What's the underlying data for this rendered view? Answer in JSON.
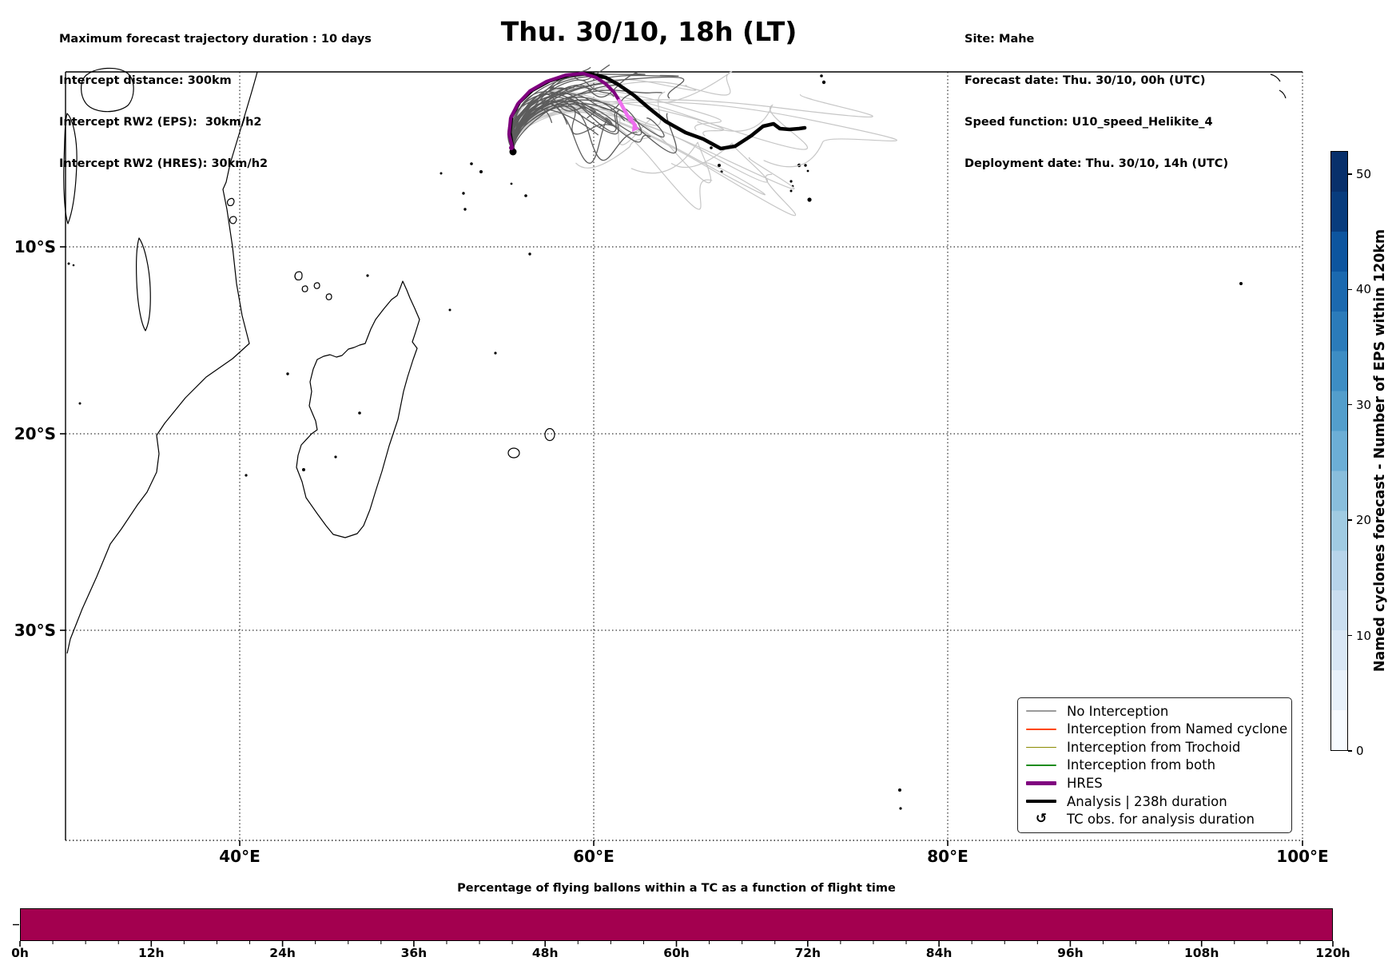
{
  "header": {
    "left": [
      "Maximum forecast trajectory duration : 10 days",
      "Intercept distance: 300km",
      "Intercept RW2 (EPS):  30km/h2",
      "Intercept RW2 (HRES): 30km/h2"
    ],
    "title": "Thu. 30/10, 18h (LT)",
    "right": [
      "Site: Mahe",
      "Forecast date: Thu. 30/10, 00h (UTC)",
      "Speed function: U10_speed_Helikite_4",
      "Deployment date: Thu. 30/10, 14h (UTC)"
    ]
  },
  "map": {
    "x_ticks": [
      "40°E",
      "60°E",
      "80°E",
      "100°E"
    ],
    "y_ticks": [
      "10°S",
      "20°S",
      "30°S"
    ],
    "legend": [
      {
        "label": "No Interception",
        "color": "#9a9a9a",
        "lw": 1.6
      },
      {
        "label": "Interception from Named cyclone",
        "color": "#ff4500",
        "lw": 1.6
      },
      {
        "label": "Interception from Trochoid",
        "color": "#8a8a00",
        "lw": 1.6
      },
      {
        "label": "Interception from both",
        "color": "#1e8c1e",
        "lw": 1.6
      },
      {
        "label": "HRES",
        "color": "#80007f",
        "lw": 4.5
      },
      {
        "label": "Analysis | 238h duration",
        "color": "#000000",
        "lw": 4.5
      },
      {
        "label": "TC obs. for analysis duration",
        "icon": "↺"
      }
    ],
    "tracks": {
      "analysis": {
        "name": "Analysis | 238h duration",
        "color": "#000000",
        "width": 4.6,
        "points": [
          [
            642,
            188
          ],
          [
            638,
            166
          ],
          [
            640,
            146
          ],
          [
            650,
            128
          ],
          [
            666,
            113
          ],
          [
            688,
            101
          ],
          [
            712,
            94
          ],
          [
            736,
            92
          ],
          [
            758,
            97
          ],
          [
            774,
            106
          ],
          [
            793,
            119
          ],
          [
            813,
            136
          ],
          [
            833,
            152
          ],
          [
            858,
            166
          ],
          [
            880,
            174
          ],
          [
            902,
            186
          ],
          [
            920,
            183
          ],
          [
            940,
            170
          ],
          [
            955,
            158
          ],
          [
            968,
            155
          ],
          [
            976,
            161
          ],
          [
            988,
            162
          ],
          [
            1000,
            161
          ],
          [
            1007,
            160
          ]
        ]
      },
      "hres": {
        "name": "HRES",
        "color": "#80007f",
        "width": 4.2,
        "points": [
          [
            642,
            188
          ],
          [
            637,
            168
          ],
          [
            639,
            148
          ],
          [
            648,
            130
          ],
          [
            663,
            114
          ],
          [
            684,
            102
          ],
          [
            708,
            94
          ],
          [
            730,
            92
          ],
          [
            746,
            97
          ],
          [
            758,
            105
          ],
          [
            768,
            115
          ],
          [
            775,
            126
          ]
        ]
      },
      "hres_tail": {
        "name": "HRES (forecast tail)",
        "color": "#ee6fee",
        "width": 4.6,
        "points": [
          [
            775,
            126
          ],
          [
            781,
            137
          ],
          [
            786,
            146
          ],
          [
            791,
            152
          ],
          [
            795,
            157
          ]
        ]
      },
      "ensemble": {
        "dark": {
          "count": 34,
          "color": "#5c5c5c",
          "width": 1.3
        },
        "light": {
          "count": 16,
          "color": "#c6c6c6",
          "width": 1.2
        },
        "seed": 20251030
      },
      "launch_site": "Mahe"
    }
  },
  "colorbar": {
    "title": "Named cyclones forecast - Number of EPS within 120km",
    "ticks": [
      0,
      10,
      20,
      30,
      40,
      50
    ],
    "vmin": 0,
    "vmax": 52,
    "steps": [
      "#f7fbff",
      "#e8f1fa",
      "#d9e7f5",
      "#cadef0",
      "#b7d4ea",
      "#a0cbe2",
      "#89bedc",
      "#6caed6",
      "#539ecc",
      "#3d8dc4",
      "#2b7bba",
      "#1b69af",
      "#0d559f",
      "#083c7d",
      "#08306b"
    ]
  },
  "bottom_chart": {
    "title": "Percentage of flying ballons within a TC as a function of flight time",
    "x_ticks": [
      "0h",
      "12h",
      "24h",
      "36h",
      "48h",
      "60h",
      "72h",
      "84h",
      "96h",
      "108h",
      "120h"
    ],
    "bar_color": "#a3004f",
    "value_percent": 100
  },
  "chart_data": {
    "type": "bar",
    "title": "Percentage of flying ballons within a TC as a function of flight time",
    "x": [
      "0h",
      "12h",
      "24h",
      "36h",
      "48h",
      "60h",
      "72h",
      "84h",
      "96h",
      "108h",
      "120h"
    ],
    "description": "single continuous bar spanning 0h to 120h at full height (100%)",
    "values": [
      100
    ],
    "xlabel": "flight time",
    "ylabel": "percentage"
  }
}
